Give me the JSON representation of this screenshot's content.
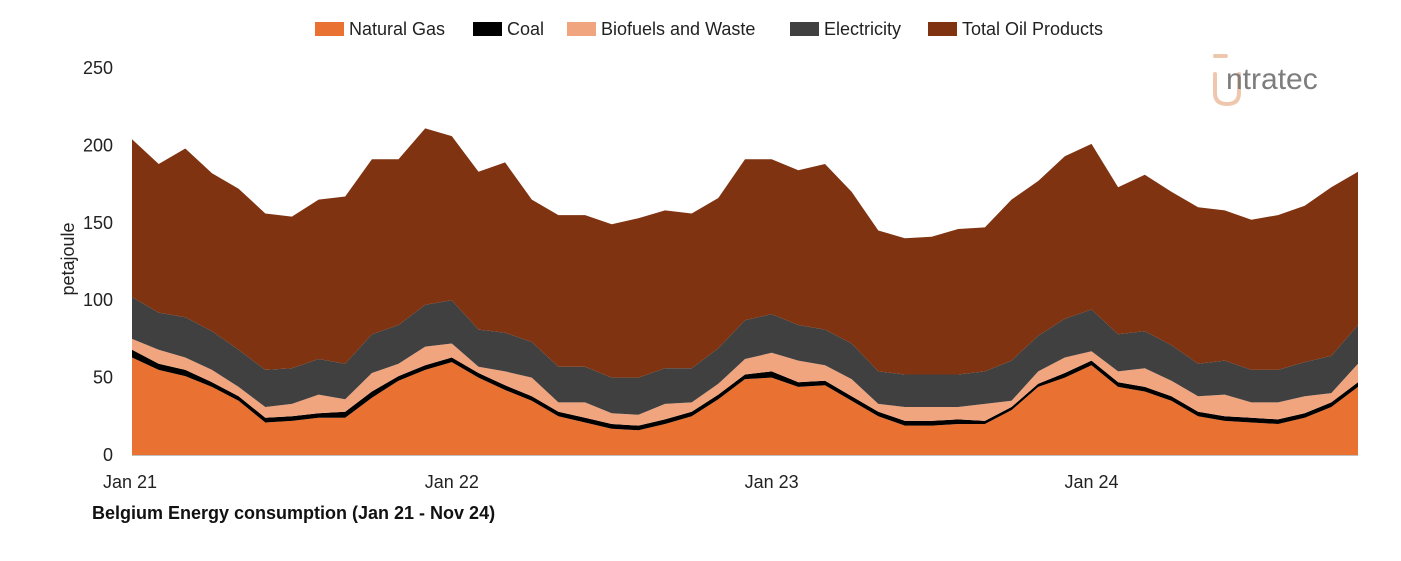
{
  "chart_data": {
    "type": "area",
    "stacked": true,
    "title": "Belgium Energy consumption (Jan 21 - Nov 24)",
    "ylabel": "petajoule",
    "xlabel": "",
    "ylim": [
      0,
      250
    ],
    "yticks": [
      0,
      50,
      100,
      150,
      200,
      250
    ],
    "x_start": "Jan 21",
    "x_end": "Nov 24",
    "x_ticks": [
      {
        "label": "Jan 21",
        "index": 0
      },
      {
        "label": "Jan 22",
        "index": 12
      },
      {
        "label": "Jan 23",
        "index": 24
      },
      {
        "label": "Jan 24",
        "index": 36
      }
    ],
    "grid": false,
    "legend_position": "top",
    "series": [
      {
        "name": "Natural Gas",
        "color": "#E97132",
        "values": [
          63,
          55,
          51,
          44,
          35,
          21,
          22,
          24,
          24,
          37,
          48,
          55,
          60,
          50,
          42,
          35,
          25,
          21,
          17,
          16,
          20,
          25,
          36,
          49,
          50,
          44,
          45,
          35,
          25,
          19,
          19,
          20,
          20,
          29,
          44,
          50,
          58,
          44,
          41,
          35,
          25,
          22,
          21,
          20,
          24,
          31,
          44
        ]
      },
      {
        "name": "Coal",
        "color": "#000000",
        "values": [
          5,
          4,
          4,
          3,
          3,
          3,
          3,
          3,
          4,
          4,
          3,
          3,
          3,
          3,
          3,
          3,
          3,
          3,
          3,
          3,
          3,
          3,
          3,
          3,
          4,
          3,
          3,
          3,
          3,
          3,
          3,
          3,
          2,
          2,
          2,
          3,
          3,
          3,
          3,
          3,
          3,
          3,
          3,
          3,
          3,
          3,
          3
        ]
      },
      {
        "name": "Biofuels and Waste",
        "color": "#F1A57F",
        "values": [
          7,
          9,
          8,
          8,
          6,
          7,
          8,
          12,
          8,
          12,
          8,
          12,
          9,
          4,
          9,
          12,
          6,
          10,
          7,
          7,
          10,
          6,
          7,
          10,
          12,
          14,
          10,
          11,
          5,
          9,
          9,
          8,
          11,
          4,
          8,
          10,
          6,
          7,
          12,
          10,
          10,
          14,
          10,
          11,
          11,
          6,
          12
        ]
      },
      {
        "name": "Electricity",
        "color": "#404040",
        "values": [
          27,
          24,
          26,
          25,
          24,
          24,
          23,
          23,
          23,
          25,
          25,
          27,
          28,
          24,
          25,
          23,
          23,
          23,
          23,
          24,
          23,
          22,
          23,
          25,
          25,
          23,
          23,
          23,
          21,
          21,
          21,
          21,
          21,
          26,
          23,
          25,
          27,
          24,
          24,
          23,
          21,
          22,
          21,
          21,
          22,
          24,
          25
        ]
      },
      {
        "name": "Total Oil Products",
        "color": "#7F3311",
        "values": [
          102,
          96,
          109,
          102,
          104,
          101,
          98,
          103,
          108,
          113,
          107,
          114,
          106,
          102,
          110,
          92,
          98,
          98,
          99,
          103,
          102,
          100,
          97,
          104,
          100,
          100,
          107,
          98,
          91,
          88,
          89,
          94,
          93,
          104,
          100,
          105,
          107,
          95,
          101,
          99,
          101,
          97,
          97,
          100,
          101,
          109,
          99
        ]
      }
    ]
  },
  "logo": {
    "brand": "intratec",
    "glyph": "i",
    "rest": "ntratec"
  }
}
